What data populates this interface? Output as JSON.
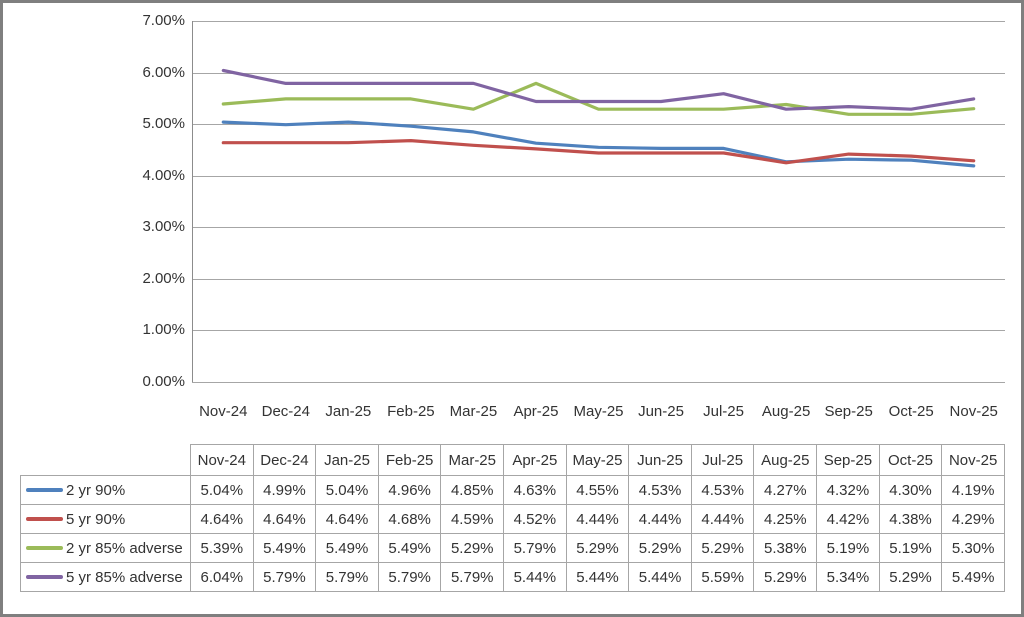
{
  "chart": {
    "y_tick_labels": [
      "0.00%",
      "1.00%",
      "2.00%",
      "3.00%",
      "4.00%",
      "5.00%",
      "6.00%",
      "7.00%"
    ],
    "grid_color": "#a6a6a6",
    "axis_color": "#8c8c8c",
    "frame_border_color": "#7f7f7f"
  },
  "chart_data": {
    "type": "line",
    "title": "",
    "xlabel": "",
    "ylabel": "",
    "categories": [
      "Nov-24",
      "Dec-24",
      "Jan-25",
      "Feb-25",
      "Mar-25",
      "Apr-25",
      "May-25",
      "Jun-25",
      "Jul-25",
      "Aug-25",
      "Sep-25",
      "Oct-25",
      "Nov-25"
    ],
    "series": [
      {
        "name": "2 yr 90%",
        "color": "#4F81BD",
        "values": [
          5.04,
          4.99,
          5.04,
          4.96,
          4.85,
          4.63,
          4.55,
          4.53,
          4.53,
          4.27,
          4.32,
          4.3,
          4.19
        ]
      },
      {
        "name": "5 yr 90%",
        "color": "#C0504D",
        "values": [
          4.64,
          4.64,
          4.64,
          4.68,
          4.59,
          4.52,
          4.44,
          4.44,
          4.44,
          4.25,
          4.42,
          4.38,
          4.29
        ]
      },
      {
        "name": "2 yr 85% adverse",
        "color": "#9BBB59",
        "values": [
          5.39,
          5.49,
          5.49,
          5.49,
          5.29,
          5.79,
          5.29,
          5.29,
          5.29,
          5.38,
          5.19,
          5.19,
          5.3
        ]
      },
      {
        "name": "5 yr 85% adverse",
        "color": "#8064A2",
        "values": [
          6.04,
          5.79,
          5.79,
          5.79,
          5.79,
          5.44,
          5.44,
          5.44,
          5.59,
          5.29,
          5.34,
          5.29,
          5.49
        ]
      }
    ],
    "ylim": [
      0,
      7
    ],
    "y_tick_step": 1,
    "value_format": "0.00%",
    "grid": true,
    "legend_position": "table-left"
  }
}
